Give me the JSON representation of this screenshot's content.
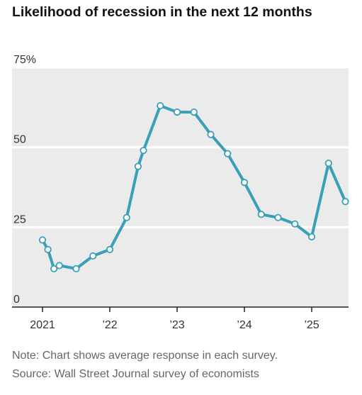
{
  "chart_data": {
    "type": "line",
    "title": "Likelihood of recession in the next 12 months",
    "y_ticks": [
      "75%",
      "50",
      "25",
      "0"
    ],
    "y_tick_values": [
      75,
      50,
      25,
      0
    ],
    "x_ticks": [
      "2021",
      "’22",
      "’23",
      "’24",
      "’25"
    ],
    "x_tick_values": [
      2021,
      2022,
      2023,
      2024,
      2025
    ],
    "xlim": [
      2020.95,
      2025.55
    ],
    "ylim": [
      0,
      75
    ],
    "grid": true,
    "colors": {
      "line": "#3aa0b8",
      "background": "#ebebeb",
      "gridline": "#ffffff",
      "axis": "#222222"
    },
    "series": [
      {
        "x": [
          2021.0,
          2021.08,
          2021.17,
          2021.25,
          2021.5,
          2021.75,
          2022.0,
          2022.25,
          2022.42,
          2022.5,
          2022.75,
          2023.0,
          2023.25,
          2023.5,
          2023.75,
          2024.0,
          2024.25,
          2024.5,
          2024.75,
          2025.0,
          2025.25,
          2025.5
        ],
        "values": [
          21,
          18,
          12,
          13,
          12,
          16,
          18,
          28,
          44,
          49,
          63,
          61,
          61,
          54,
          48,
          39,
          29,
          28,
          26,
          22,
          45,
          33
        ]
      }
    ]
  },
  "footer": {
    "note": "Note: Chart shows average response in each survey.",
    "source": "Source: Wall Street Journal survey of economists"
  }
}
